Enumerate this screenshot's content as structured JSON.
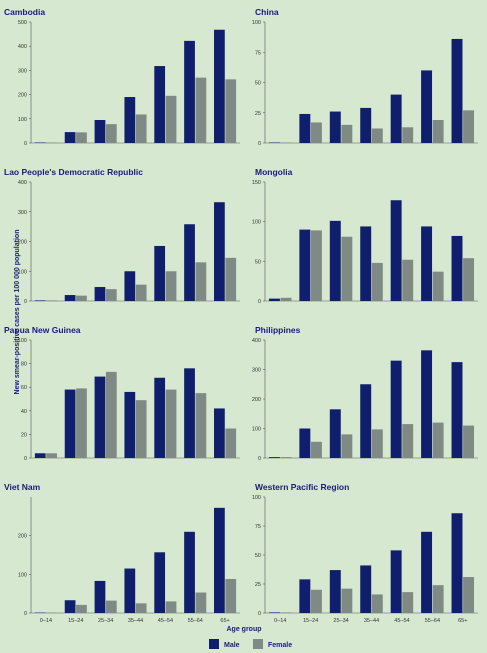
{
  "colors": {
    "male": "#0f1f6e",
    "female": "#808a85",
    "background": "#d6e9d0",
    "title": "#1a1a7a"
  },
  "chart_data": [
    {
      "type": "bar",
      "title": "Cambodia",
      "categories": [
        "0–14",
        "15–24",
        "25–34",
        "35–44",
        "45–54",
        "55–64",
        "65+"
      ],
      "ylim": [
        0,
        500
      ],
      "yticks": [
        0,
        100,
        200,
        300,
        400,
        500
      ],
      "series": [
        {
          "name": "Male",
          "values": [
            2,
            45,
            95,
            190,
            318,
            422,
            468
          ]
        },
        {
          "name": "Female",
          "values": [
            2,
            44,
            78,
            118,
            195,
            270,
            263
          ]
        }
      ]
    },
    {
      "type": "bar",
      "title": "China",
      "categories": [
        "0–14",
        "15–24",
        "25–34",
        "35–44",
        "45–54",
        "55–64",
        "65+"
      ],
      "ylim": [
        0,
        100
      ],
      "yticks": [
        0,
        25,
        50,
        75,
        100
      ],
      "series": [
        {
          "name": "Male",
          "values": [
            0.4,
            24,
            26,
            29,
            40,
            60,
            86
          ]
        },
        {
          "name": "Female",
          "values": [
            0.4,
            17,
            15,
            12,
            13,
            19,
            27
          ]
        }
      ]
    },
    {
      "type": "bar",
      "title": "Lao People's Democratic Republic",
      "categories": [
        "0–14",
        "15–24",
        "25–34",
        "35–44",
        "45–54",
        "55–64",
        "65+"
      ],
      "ylim": [
        0,
        400
      ],
      "yticks": [
        0,
        100,
        200,
        300,
        400
      ],
      "series": [
        {
          "name": "Male",
          "values": [
            2,
            20,
            47,
            100,
            185,
            258,
            332
          ]
        },
        {
          "name": "Female",
          "values": [
            2,
            18,
            40,
            55,
            100,
            130,
            145
          ]
        }
      ]
    },
    {
      "type": "bar",
      "title": "Mongolia",
      "categories": [
        "0–14",
        "15–24",
        "25–34",
        "35–44",
        "45–54",
        "55–64",
        "65+"
      ],
      "ylim": [
        0,
        150
      ],
      "yticks": [
        0,
        50,
        100,
        150
      ],
      "series": [
        {
          "name": "Male",
          "values": [
            3,
            90,
            101,
            94,
            127,
            94,
            82
          ]
        },
        {
          "name": "Female",
          "values": [
            4,
            89,
            81,
            48,
            52,
            37,
            54
          ]
        }
      ]
    },
    {
      "type": "bar",
      "title": "Papua New Guinea",
      "categories": [
        "0–14",
        "15–24",
        "25–34",
        "35–44",
        "45–54",
        "55–64",
        "65+"
      ],
      "ylim": [
        0,
        100
      ],
      "yticks": [
        0,
        20,
        40,
        60,
        80,
        100
      ],
      "series": [
        {
          "name": "Male",
          "values": [
            4,
            58,
            69,
            56,
            68,
            76,
            42
          ]
        },
        {
          "name": "Female",
          "values": [
            4,
            59,
            73,
            49,
            58,
            55,
            25
          ]
        }
      ]
    },
    {
      "type": "bar",
      "title": "Philippines",
      "categories": [
        "0–14",
        "15–24",
        "25–34",
        "35–44",
        "45–54",
        "55–64",
        "65+"
      ],
      "ylim": [
        0,
        400
      ],
      "yticks": [
        0,
        100,
        200,
        300,
        400
      ],
      "series": [
        {
          "name": "Male",
          "values": [
            3,
            100,
            165,
            250,
            330,
            365,
            325
          ]
        },
        {
          "name": "Female",
          "values": [
            3,
            55,
            80,
            97,
            115,
            120,
            110
          ]
        }
      ]
    },
    {
      "type": "bar",
      "title": "Viet Nam",
      "categories": [
        "0–14",
        "15–24",
        "25–34",
        "35–44",
        "45–54",
        "55–64",
        "65+"
      ],
      "ylim": [
        0,
        300
      ],
      "yticks": [
        0,
        100,
        200
      ],
      "series": [
        {
          "name": "Male",
          "values": [
            1,
            33,
            83,
            115,
            157,
            210,
            272
          ]
        },
        {
          "name": "Female",
          "values": [
            1,
            21,
            32,
            25,
            30,
            53,
            88
          ]
        }
      ]
    },
    {
      "type": "bar",
      "title": "Western Pacific Region",
      "categories": [
        "0–14",
        "15–24",
        "25–34",
        "35–44",
        "45–54",
        "55–64",
        "65+"
      ],
      "ylim": [
        0,
        100
      ],
      "yticks": [
        0,
        25,
        50,
        75,
        100
      ],
      "series": [
        {
          "name": "Male",
          "values": [
            0.5,
            29,
            37,
            41,
            54,
            70,
            86
          ]
        },
        {
          "name": "Female",
          "values": [
            0.5,
            20,
            21,
            16,
            18,
            24,
            31
          ]
        }
      ]
    }
  ],
  "ylabel": "New smear-positive cases per 100 000 population",
  "xlabel": "Age group",
  "legend": [
    {
      "label": "Male",
      "color_key": "male"
    },
    {
      "label": "Female",
      "color_key": "female"
    }
  ]
}
